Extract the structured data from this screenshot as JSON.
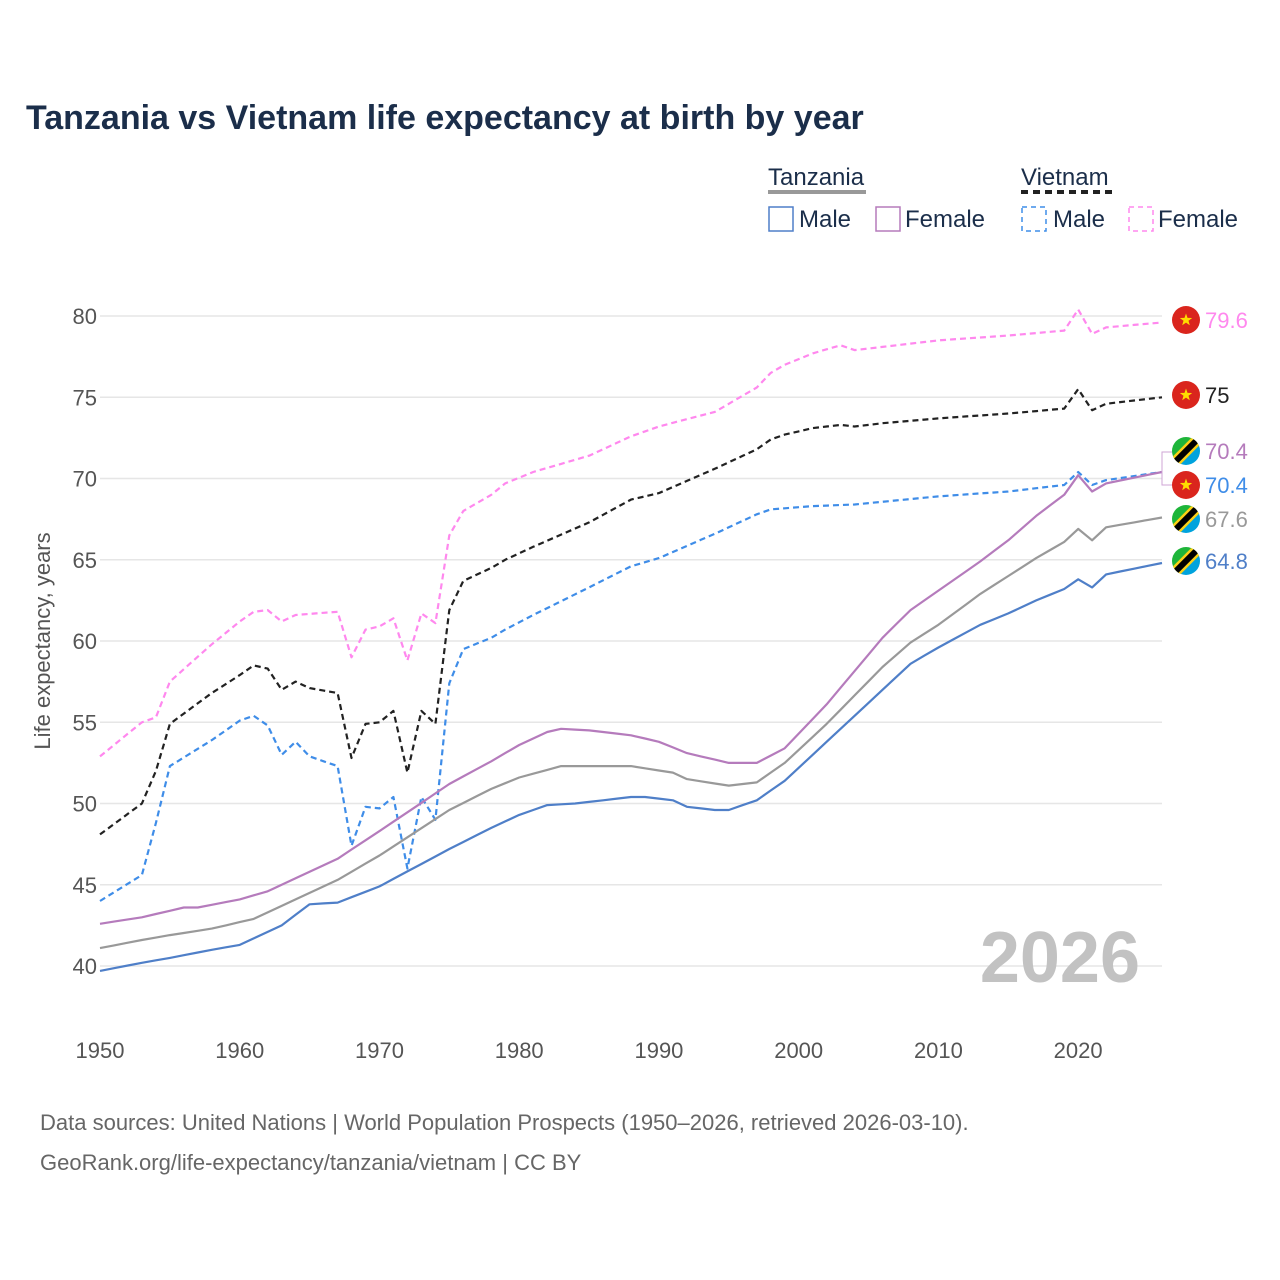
{
  "chart_data": {
    "type": "line",
    "title": "Tanzania vs Vietnam life expectancy at birth by year",
    "ylabel": "Life expectancy, years",
    "xlabel": "",
    "xlim": [
      1950,
      2026
    ],
    "ylim": [
      37,
      82
    ],
    "yticks": [
      40,
      45,
      50,
      55,
      60,
      65,
      70,
      75,
      80
    ],
    "xticks": [
      1950,
      1960,
      1970,
      1980,
      1990,
      2000,
      2010,
      2020
    ],
    "grid": true,
    "year_watermark": "2026",
    "legend": {
      "groups": [
        {
          "name": "Tanzania",
          "line_color": "#999999",
          "line_style": "solid",
          "items": [
            {
              "label": "Male",
              "color": "#4f7fc8",
              "dashed": false
            },
            {
              "label": "Female",
              "color": "#b57bbc",
              "dashed": false
            }
          ]
        },
        {
          "name": "Vietnam",
          "line_color": "#222222",
          "line_style": "dashed",
          "items": [
            {
              "label": "Male",
              "color": "#3f8de8",
              "dashed": true
            },
            {
              "label": "Female",
              "color": "#ff88ee",
              "dashed": true
            }
          ]
        }
      ]
    },
    "keyframes": {
      "vn_female": [
        [
          1950,
          52.9
        ],
        [
          1953,
          55.0
        ],
        [
          1954,
          55.3
        ],
        [
          1955,
          57.5
        ],
        [
          1958,
          59.8
        ],
        [
          1960,
          61.2
        ],
        [
          1961,
          61.8
        ],
        [
          1962,
          61.9
        ],
        [
          1963,
          61.2
        ],
        [
          1964,
          61.6
        ],
        [
          1967,
          61.8
        ],
        [
          1968,
          59.0
        ],
        [
          1969,
          60.7
        ],
        [
          1970,
          60.9
        ],
        [
          1971,
          61.4
        ],
        [
          1972,
          58.8
        ],
        [
          1973,
          61.7
        ],
        [
          1974,
          61.1
        ],
        [
          1975,
          66.5
        ],
        [
          1976,
          68.0
        ],
        [
          1978,
          69.0
        ],
        [
          1979,
          69.7
        ],
        [
          1981,
          70.4
        ],
        [
          1985,
          71.4
        ],
        [
          1988,
          72.6
        ],
        [
          1990,
          73.2
        ],
        [
          1994,
          74.1
        ],
        [
          1997,
          75.6
        ],
        [
          1998,
          76.5
        ],
        [
          1999,
          77.0
        ],
        [
          2001,
          77.7
        ],
        [
          2003,
          78.2
        ],
        [
          2004,
          77.9
        ],
        [
          2006,
          78.1
        ],
        [
          2010,
          78.5
        ],
        [
          2015,
          78.8
        ],
        [
          2019,
          79.1
        ],
        [
          2020,
          80.4
        ],
        [
          2021,
          78.9
        ],
        [
          2022,
          79.3
        ],
        [
          2026,
          79.6
        ]
      ],
      "vn_total": [
        [
          1950,
          48.1
        ],
        [
          1953,
          50.0
        ],
        [
          1954,
          52.0
        ],
        [
          1955,
          54.9
        ],
        [
          1958,
          56.8
        ],
        [
          1960,
          57.9
        ],
        [
          1961,
          58.5
        ],
        [
          1962,
          58.3
        ],
        [
          1963,
          57.0
        ],
        [
          1964,
          57.5
        ],
        [
          1965,
          57.1
        ],
        [
          1967,
          56.8
        ],
        [
          1968,
          52.8
        ],
        [
          1969,
          54.9
        ],
        [
          1970,
          55.0
        ],
        [
          1971,
          55.7
        ],
        [
          1972,
          51.9
        ],
        [
          1973,
          55.7
        ],
        [
          1974,
          54.9
        ],
        [
          1975,
          61.9
        ],
        [
          1976,
          63.7
        ],
        [
          1978,
          64.5
        ],
        [
          1979,
          65.0
        ],
        [
          1981,
          65.8
        ],
        [
          1985,
          67.3
        ],
        [
          1988,
          68.7
        ],
        [
          1990,
          69.1
        ],
        [
          1994,
          70.6
        ],
        [
          1997,
          71.8
        ],
        [
          1998,
          72.4
        ],
        [
          1999,
          72.7
        ],
        [
          2001,
          73.1
        ],
        [
          2003,
          73.3
        ],
        [
          2004,
          73.2
        ],
        [
          2006,
          73.4
        ],
        [
          2010,
          73.7
        ],
        [
          2015,
          74.0
        ],
        [
          2019,
          74.3
        ],
        [
          2020,
          75.5
        ],
        [
          2021,
          74.2
        ],
        [
          2022,
          74.6
        ],
        [
          2026,
          75.0
        ]
      ],
      "vn_male": [
        [
          1950,
          44.0
        ],
        [
          1953,
          45.6
        ],
        [
          1954,
          48.8
        ],
        [
          1955,
          52.3
        ],
        [
          1958,
          53.9
        ],
        [
          1960,
          55.1
        ],
        [
          1961,
          55.4
        ],
        [
          1962,
          54.8
        ],
        [
          1963,
          53.0
        ],
        [
          1964,
          53.8
        ],
        [
          1965,
          52.9
        ],
        [
          1967,
          52.3
        ],
        [
          1968,
          47.4
        ],
        [
          1969,
          49.8
        ],
        [
          1970,
          49.7
        ],
        [
          1971,
          50.4
        ],
        [
          1972,
          46.0
        ],
        [
          1973,
          50.4
        ],
        [
          1974,
          49.0
        ],
        [
          1975,
          57.4
        ],
        [
          1976,
          59.5
        ],
        [
          1978,
          60.2
        ],
        [
          1979,
          60.7
        ],
        [
          1981,
          61.6
        ],
        [
          1985,
          63.3
        ],
        [
          1988,
          64.6
        ],
        [
          1990,
          65.1
        ],
        [
          1994,
          66.6
        ],
        [
          1997,
          67.8
        ],
        [
          1998,
          68.1
        ],
        [
          2001,
          68.3
        ],
        [
          2004,
          68.4
        ],
        [
          2010,
          68.9
        ],
        [
          2015,
          69.2
        ],
        [
          2019,
          69.6
        ],
        [
          2020,
          70.4
        ],
        [
          2021,
          69.6
        ],
        [
          2022,
          69.9
        ],
        [
          2026,
          70.4
        ]
      ],
      "tz_female": [
        [
          1950,
          42.6
        ],
        [
          1953,
          43.0
        ],
        [
          1956,
          43.6
        ],
        [
          1957,
          43.6
        ],
        [
          1960,
          44.1
        ],
        [
          1962,
          44.6
        ],
        [
          1964,
          45.4
        ],
        [
          1967,
          46.6
        ],
        [
          1970,
          48.3
        ],
        [
          1975,
          51.2
        ],
        [
          1978,
          52.6
        ],
        [
          1980,
          53.6
        ],
        [
          1982,
          54.4
        ],
        [
          1983,
          54.6
        ],
        [
          1985,
          54.5
        ],
        [
          1988,
          54.2
        ],
        [
          1990,
          53.8
        ],
        [
          1992,
          53.1
        ],
        [
          1995,
          52.5
        ],
        [
          1997,
          52.5
        ],
        [
          1999,
          53.4
        ],
        [
          2002,
          56.1
        ],
        [
          2006,
          60.2
        ],
        [
          2008,
          61.9
        ],
        [
          2010,
          63.1
        ],
        [
          2013,
          64.9
        ],
        [
          2015,
          66.2
        ],
        [
          2017,
          67.7
        ],
        [
          2019,
          69.0
        ],
        [
          2020,
          70.2
        ],
        [
          2021,
          69.2
        ],
        [
          2022,
          69.7
        ],
        [
          2026,
          70.4
        ]
      ],
      "tz_total": [
        [
          1950,
          41.1
        ],
        [
          1953,
          41.6
        ],
        [
          1955,
          41.9
        ],
        [
          1958,
          42.3
        ],
        [
          1961,
          42.9
        ],
        [
          1964,
          44.1
        ],
        [
          1967,
          45.3
        ],
        [
          1970,
          46.8
        ],
        [
          1975,
          49.6
        ],
        [
          1978,
          50.9
        ],
        [
          1980,
          51.6
        ],
        [
          1983,
          52.3
        ],
        [
          1985,
          52.3
        ],
        [
          1988,
          52.3
        ],
        [
          1991,
          51.9
        ],
        [
          1992,
          51.5
        ],
        [
          1995,
          51.1
        ],
        [
          1997,
          51.3
        ],
        [
          1999,
          52.5
        ],
        [
          2002,
          54.9
        ],
        [
          2006,
          58.4
        ],
        [
          2008,
          59.9
        ],
        [
          2010,
          61.0
        ],
        [
          2013,
          62.9
        ],
        [
          2015,
          64.0
        ],
        [
          2017,
          65.1
        ],
        [
          2019,
          66.1
        ],
        [
          2020,
          66.9
        ],
        [
          2021,
          66.2
        ],
        [
          2022,
          67.0
        ],
        [
          2026,
          67.6
        ]
      ],
      "tz_male": [
        [
          1950,
          39.7
        ],
        [
          1953,
          40.2
        ],
        [
          1955,
          40.5
        ],
        [
          1958,
          41.0
        ],
        [
          1960,
          41.3
        ],
        [
          1963,
          42.5
        ],
        [
          1965,
          43.8
        ],
        [
          1967,
          43.9
        ],
        [
          1970,
          44.9
        ],
        [
          1975,
          47.2
        ],
        [
          1978,
          48.5
        ],
        [
          1980,
          49.3
        ],
        [
          1982,
          49.9
        ],
        [
          1984,
          50.0
        ],
        [
          1988,
          50.4
        ],
        [
          1989,
          50.4
        ],
        [
          1991,
          50.2
        ],
        [
          1992,
          49.8
        ],
        [
          1994,
          49.6
        ],
        [
          1995,
          49.6
        ],
        [
          1997,
          50.2
        ],
        [
          1999,
          51.4
        ],
        [
          2002,
          53.8
        ],
        [
          2006,
          57.0
        ],
        [
          2008,
          58.6
        ],
        [
          2010,
          59.6
        ],
        [
          2013,
          61.0
        ],
        [
          2015,
          61.7
        ],
        [
          2017,
          62.5
        ],
        [
          2019,
          63.2
        ],
        [
          2020,
          63.8
        ],
        [
          2021,
          63.3
        ],
        [
          2022,
          64.1
        ],
        [
          2026,
          64.8
        ]
      ]
    },
    "series": [
      {
        "id": "vn_female",
        "name": "Vietnam Female",
        "color": "#ff88ee",
        "dashed": true,
        "end_value": 79.6,
        "end_label": "79.6",
        "flag": "vietnam"
      },
      {
        "id": "vn_total",
        "name": "Vietnam",
        "color": "#222222",
        "dashed": true,
        "end_value": 75.0,
        "end_label": "75",
        "flag": "vietnam"
      },
      {
        "id": "vn_male",
        "name": "Vietnam Male",
        "color": "#3f8de8",
        "dashed": true,
        "end_value": 70.4,
        "end_label": "70.4",
        "flag": "vietnam"
      },
      {
        "id": "tz_female",
        "name": "Tanzania Female",
        "color": "#b57bbc",
        "dashed": false,
        "end_value": 70.4,
        "end_label": "70.4",
        "flag": "tanzania"
      },
      {
        "id": "tz_total",
        "name": "Tanzania",
        "color": "#999999",
        "dashed": false,
        "end_value": 67.6,
        "end_label": "67.6",
        "flag": "tanzania"
      },
      {
        "id": "tz_male",
        "name": "Tanzania Male",
        "color": "#4f7fc8",
        "dashed": false,
        "end_value": 64.8,
        "end_label": "64.8",
        "flag": "tanzania"
      }
    ]
  },
  "source": {
    "line1": "Data sources: United Nations | World Population Prospects (1950–2026, retrieved 2026-03-10).",
    "line2": "GeoRank.org/life-expectancy/tanzania/vietnam | CC BY"
  },
  "colors": {
    "title": "#1b2e4a",
    "grid": "#e6e6e6",
    "watermark": "#c2c2c2",
    "vietnam_flag_red": "#da251d",
    "vietnam_flag_star": "#ffdd00",
    "tanzania_green": "#1eb53a",
    "tanzania_blue": "#00a3dd",
    "tanzania_yellow": "#fcd116",
    "tanzania_black": "#000000"
  }
}
